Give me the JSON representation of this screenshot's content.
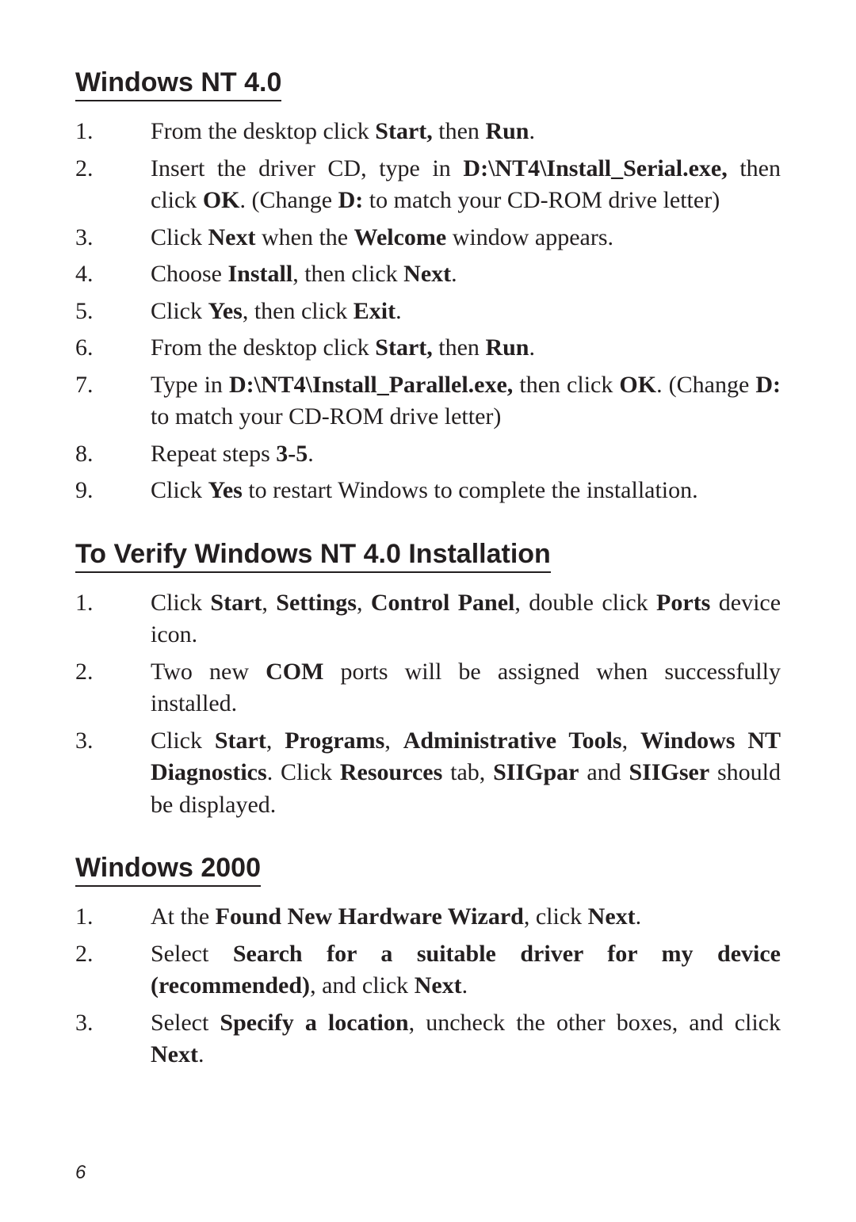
{
  "headings": {
    "h1": "Windows NT 4.0",
    "h2": "To Verify Windows NT 4.0 Installation",
    "h3": "Windows 2000"
  },
  "s1": {
    "i1a": "From the desktop click ",
    "i1b": "Start,",
    "i1c": " then ",
    "i1d": "Run",
    "i1e": ".",
    "i2a": "Insert the driver CD, type in ",
    "i2b": "D:\\NT4\\Install_Serial.exe,",
    "i2c": " then click ",
    "i2d": "OK",
    "i2e": ". (Change ",
    "i2f": "D:",
    "i2g": " to match your CD-ROM drive letter)",
    "i3a": "Click ",
    "i3b": "Next",
    "i3c": " when the ",
    "i3d": "Welcome",
    "i3e": " window appears.",
    "i4a": "Choose ",
    "i4b": "Install",
    "i4c": ", then click ",
    "i4d": "Next",
    "i4e": ".",
    "i5a": "Click ",
    "i5b": "Yes",
    "i5c": ", then click ",
    "i5d": "Exit",
    "i5e": ".",
    "i6a": "From the desktop click ",
    "i6b": "Start,",
    "i6c": " then ",
    "i6d": "Run",
    "i6e": ".",
    "i7a": "Type in ",
    "i7b": "D:\\NT4\\Install_Parallel.exe,",
    "i7c": " then click ",
    "i7d": "OK",
    "i7e": ".  (Change ",
    "i7f": "D:",
    "i7g": " to match your CD-ROM drive letter)",
    "i8a": "Repeat steps ",
    "i8b": "3-5",
    "i8c": ".",
    "i9a": "Click ",
    "i9b": "Yes",
    "i9c": " to restart Windows to complete the installation."
  },
  "s2": {
    "i1a": "Click  ",
    "i1b": "Start",
    "i1c": ", ",
    "i1d": "Settings",
    "i1e": ", ",
    "i1f": "Control Panel",
    "i1g": ", double click ",
    "i1h": "Ports",
    "i1i": " device icon.",
    "i2a": "Two new ",
    "i2b": "COM",
    "i2c": " ports will be assigned when successfully  installed.",
    "i3a": "Click ",
    "i3b": "Start",
    "i3c": ", ",
    "i3d": "Programs",
    "i3e": ", ",
    "i3f": "Administrative Tools",
    "i3g": ", ",
    "i3h": "Windows NT Diagnostics",
    "i3i": ".  Click ",
    "i3j": "Resources",
    "i3k": " tab, ",
    "i3l": "SIIGpar",
    "i3m": " and ",
    "i3n": "SIIGser",
    "i3o": " should be displayed."
  },
  "s3": {
    "i1a": "At the ",
    "i1b": "Found New Hardware Wizard",
    "i1c": ", click ",
    "i1d": "Next",
    "i1e": ".",
    "i2a": "Select ",
    "i2b": "Search for a suitable driver for my device (recommended)",
    "i2c": ", and click ",
    "i2d": "Next",
    "i2e": ".",
    "i3a": "Select ",
    "i3b": "Specify a location",
    "i3c": ", uncheck the other boxes, and click ",
    "i3d": "Next",
    "i3e": "."
  },
  "page": "6"
}
